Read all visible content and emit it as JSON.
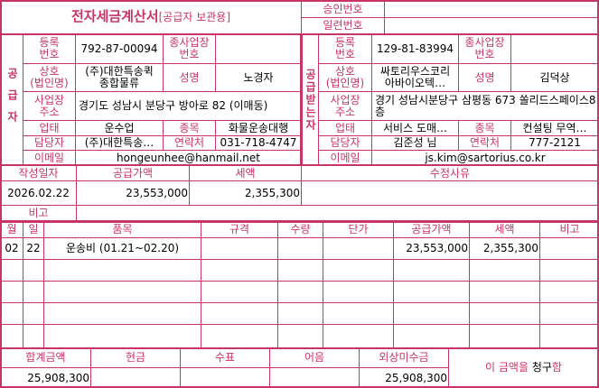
{
  "header": {
    "title": "전자세금계산서",
    "subtitle": "[공급자 보관용]",
    "approval_label": "승인번호",
    "approval_value": "",
    "serial_label": "일련번호",
    "serial_value": ""
  },
  "labels": {
    "reg_no": "등록\n번호",
    "sub_biz": "종사업장\n번호",
    "company": "상호\n(법인명)",
    "ceo": "성명",
    "address": "사업장\n주소",
    "biz_type": "업태",
    "biz_item": "종목",
    "manager": "담당자",
    "contact": "연락처",
    "email": "이메일"
  },
  "supplier": {
    "side_label": "공급자",
    "reg_no": "792-87-00094",
    "sub_biz": "",
    "company": "(주)대한특송퀵\n종합물류",
    "ceo": "노경자",
    "address": "경기도 성남시 분당구 방아로 82 (이매동)",
    "biz_type": "운수업",
    "biz_item": "화물운송대행",
    "manager": "(주)대한특송…",
    "contact": "031-718-4747",
    "email": "hongeunhee@hanmail.net"
  },
  "receiver": {
    "side_label": "공급받는자",
    "reg_no": "129-81-83994",
    "sub_biz": "",
    "company": "싸토리우스코리\n아바이오텍…",
    "ceo": "김덕상",
    "address": "경기 성남시분당구 삼평동 673 쏠리드스페이스8층",
    "biz_type": "서비스 도매…",
    "biz_item": "컨설팅 무역…",
    "manager": "김준성 님",
    "contact": "777-2121",
    "email": "js.kim@sartorius.co.kr"
  },
  "summary": {
    "date_label": "작성일자",
    "supply_label": "공급가액",
    "tax_label": "세액",
    "reason_label": "수정사유",
    "date": "2026.02.22",
    "supply": "23,553,000",
    "tax": "2,355,300",
    "reason": "",
    "note_label": "비고",
    "note": ""
  },
  "items": {
    "headers": [
      "월",
      "일",
      "품목",
      "규격",
      "수량",
      "단가",
      "공급가액",
      "세액",
      "비고"
    ],
    "rows": [
      [
        "02",
        "22",
        "운송비 (01.21~02.20)",
        "",
        "",
        "",
        "23,553,000",
        "2,355,300",
        ""
      ]
    ]
  },
  "totals": {
    "headers": [
      "합계금액",
      "현금",
      "수표",
      "어음",
      "외상미수금"
    ],
    "values": [
      "25,908,300",
      "",
      "",
      "",
      "25,908,300"
    ],
    "claim_prefix": "이 금액을 ",
    "claim_word": "청구",
    "claim_suffix": "함"
  },
  "colors": {
    "accent": "#c8336a"
  }
}
